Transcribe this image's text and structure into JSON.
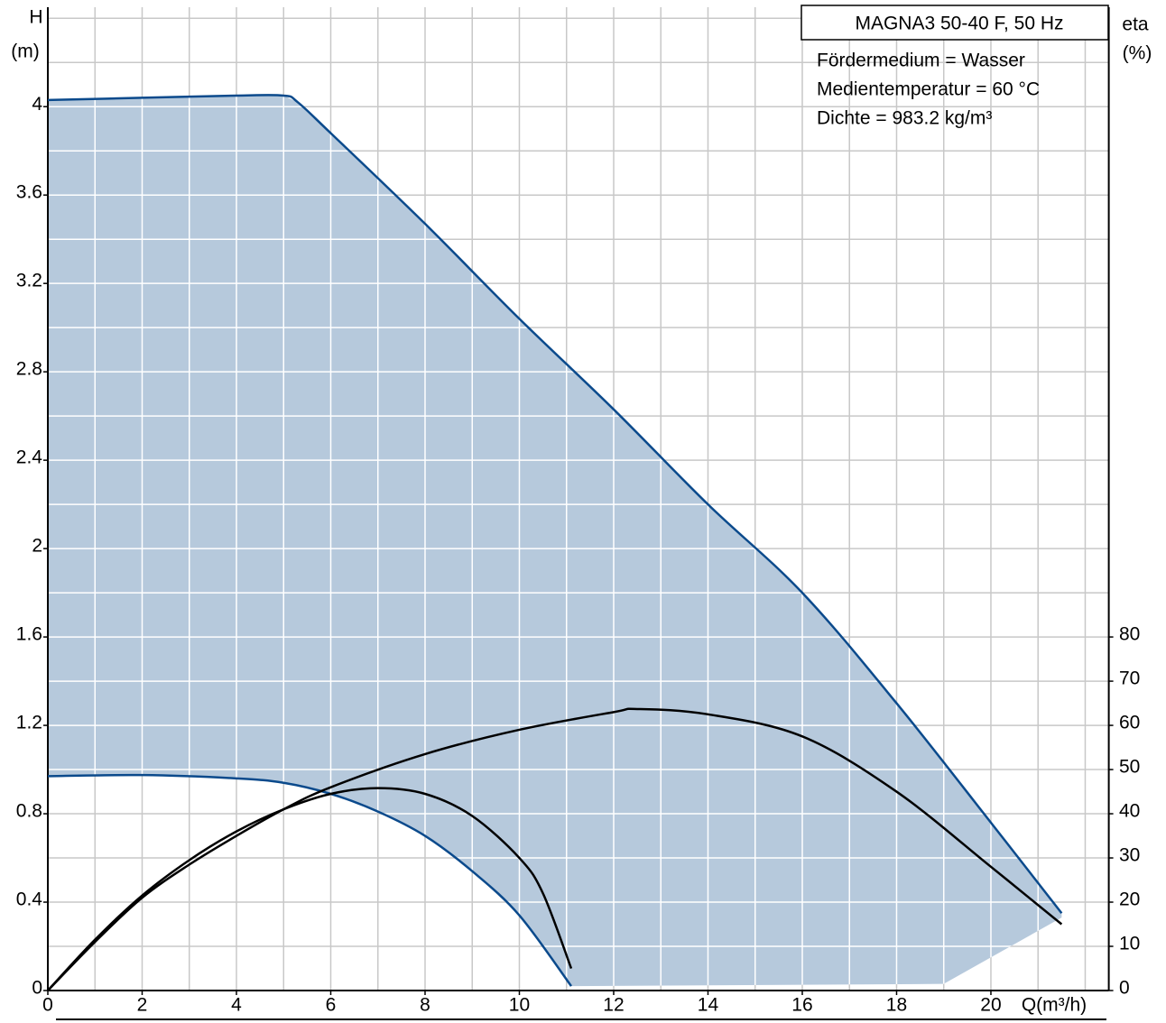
{
  "chart_data": {
    "type": "line",
    "title": "MAGNA3 50-40 F, 50 Hz",
    "annotations": [
      "Fördermedium = Wasser",
      "Medientemperatur = 60 °C",
      "Dichte = 983.2 kg/m³"
    ],
    "xlabel": "Q(m³/h)",
    "ylabel": "H",
    "ylabel_unit": "(m)",
    "y2label": "eta",
    "y2label_unit": "(%)",
    "xlim": [
      0,
      22.5
    ],
    "ylim": [
      0,
      4.45
    ],
    "y2lim": [
      0,
      222.5
    ],
    "xticks": [
      0,
      2,
      4,
      6,
      8,
      10,
      12,
      14,
      16,
      18,
      20
    ],
    "yticks": [
      0,
      0.4,
      0.8,
      1.2,
      1.6,
      2,
      2.4,
      2.8,
      3.2,
      3.6,
      4
    ],
    "y2ticks": [
      0,
      10,
      20,
      30,
      40,
      50,
      60,
      70,
      80
    ],
    "x_grid": [
      1,
      2,
      3,
      4,
      5,
      6,
      7,
      8,
      9,
      10,
      11,
      12,
      13,
      14,
      15,
      16,
      17,
      18,
      19,
      20,
      21,
      22
    ],
    "y_grid": [
      0.2,
      0.4,
      0.6,
      0.8,
      1,
      1.2,
      1.4,
      1.6,
      1.8,
      2,
      2.2,
      2.4,
      2.6,
      2.8,
      3,
      3.2,
      3.4,
      3.6,
      3.8,
      4,
      4.2,
      4.4
    ],
    "grid": true,
    "grid_color": "#c8c8c8",
    "area": {
      "color": "#b6c9dc",
      "x": [
        21.5,
        19,
        11.1,
        10,
        9,
        8,
        7,
        6,
        5,
        4,
        2,
        0
      ],
      "values": [
        0.33,
        0.03,
        0.02,
        0.34,
        0.54,
        0.7,
        0.81,
        0.89,
        0.94,
        0.96,
        0.975,
        0.97
      ]
    },
    "series": [
      {
        "color": "#0b4a8c",
        "x": [
          0,
          2,
          4,
          5,
          5.3,
          6,
          8,
          10,
          12,
          14,
          16,
          18,
          20,
          21.5
        ],
        "values": [
          4.03,
          4.04,
          4.05,
          4.05,
          4.02,
          3.88,
          3.47,
          3.04,
          2.63,
          2.2,
          1.8,
          1.3,
          0.76,
          0.35
        ]
      },
      {
        "color": "#0b4a8c",
        "x": [
          0,
          2,
          4,
          5,
          6,
          7,
          8,
          9,
          10,
          11.1
        ],
        "values": [
          0.97,
          0.975,
          0.96,
          0.94,
          0.89,
          0.81,
          0.7,
          0.54,
          0.34,
          0.02
        ]
      },
      {
        "color": "#000000",
        "axis": "y2",
        "x": [
          0,
          1,
          2,
          3,
          4,
          5,
          6,
          8,
          10,
          12,
          12.5,
          14,
          16,
          18,
          20,
          21.5
        ],
        "values": [
          0,
          11,
          21,
          28.5,
          35,
          41,
          46,
          53.5,
          59,
          63,
          63.7,
          62.5,
          57.5,
          45,
          28,
          15
        ]
      },
      {
        "color": "#000000",
        "axis": "y2",
        "x": [
          0,
          1,
          2,
          3,
          4,
          5,
          6,
          7,
          8,
          9,
          10,
          10.5,
          11.1
        ],
        "values": [
          0,
          11.5,
          21.5,
          29.5,
          36,
          41,
          44.5,
          45.8,
          44.5,
          39.5,
          30,
          22,
          5
        ]
      }
    ]
  }
}
